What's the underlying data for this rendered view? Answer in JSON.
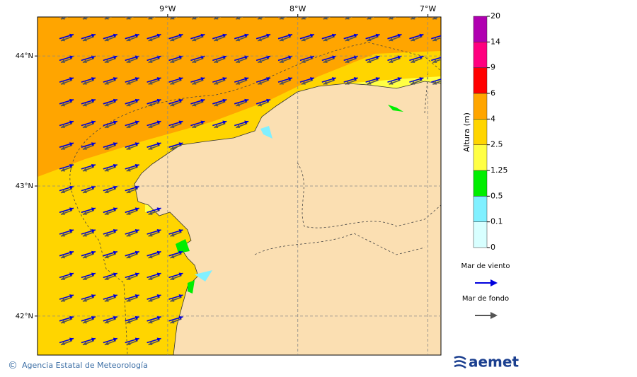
{
  "map": {
    "xlim": [
      -10,
      -6.9
    ],
    "ylim": [
      41.7,
      44.3
    ],
    "lon_ticks": [
      {
        "value": -9,
        "label": "9°W"
      },
      {
        "value": -8,
        "label": "8°W"
      },
      {
        "value": -7,
        "label": "7°W"
      }
    ],
    "lat_ticks": [
      {
        "value": 44,
        "label": "44°N"
      },
      {
        "value": 43,
        "label": "43°N"
      },
      {
        "value": 42,
        "label": "42°N"
      }
    ]
  },
  "colorbar": {
    "title": "Altura (m)",
    "levels": [
      0,
      0.1,
      0.5,
      1.25,
      2.5,
      4,
      6,
      9,
      14,
      20
    ],
    "colors": [
      "#d8ffff",
      "#80f0ff",
      "#00ee00",
      "#ffff44",
      "#ffd500",
      "#ffa500",
      "#ff0000",
      "#ff007f",
      "#b000b0"
    ]
  },
  "legend": [
    {
      "label": "Mar de viento",
      "color": "#0000dd"
    },
    {
      "label": "Mar de fondo",
      "color": "#555555"
    }
  ],
  "footer": {
    "symbol": "©",
    "credit": "Agencia Estatal de Meteorología",
    "logo": "aemet"
  }
}
